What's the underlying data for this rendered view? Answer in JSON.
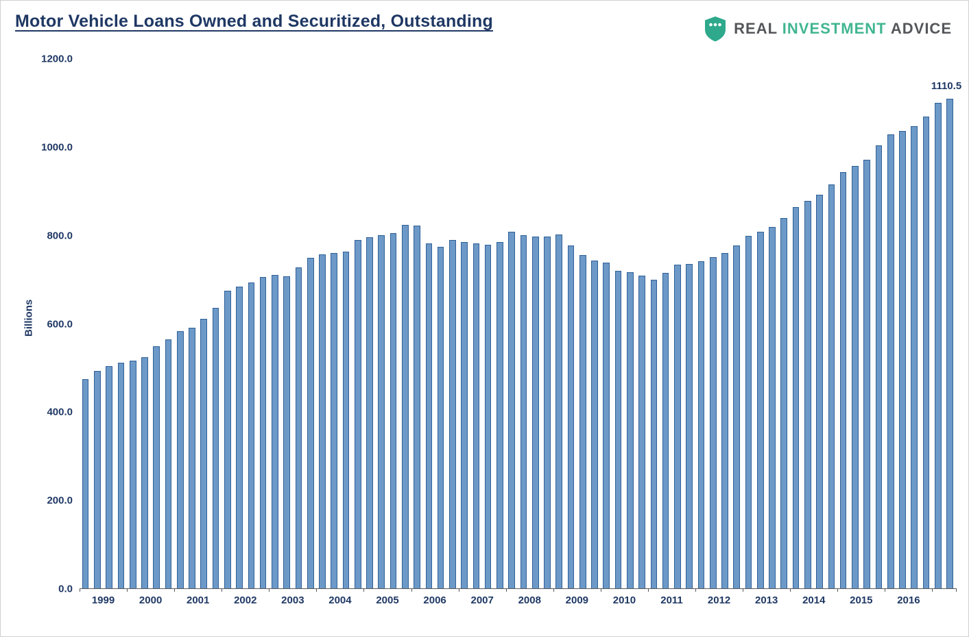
{
  "header": {
    "title": "Motor Vehicle Loans Owned and Securitized, Outstanding",
    "logo": {
      "real": "REAL",
      "investment": "INVESTMENT",
      "advice": "ADVICE",
      "shield_color": "#2EA98C"
    }
  },
  "chart_data": {
    "type": "bar",
    "title": "Motor Vehicle Loans Owned and Securitized, Outstanding",
    "ylabel": "Billions",
    "xlabel": "",
    "ylim": [
      0,
      1200
    ],
    "ytick_interval": 200,
    "ytick_labels": [
      "0.0",
      "200.0",
      "400.0",
      "600.0",
      "800.0",
      "1000.0",
      "1200.0"
    ],
    "grid": false,
    "legend_position": "none",
    "bar_fill": "#6C99C7",
    "bar_border": "#2F5F96",
    "year_labels": [
      "1999",
      "2000",
      "2001",
      "2002",
      "2003",
      "2004",
      "2005",
      "2006",
      "2007",
      "2008",
      "2009",
      "2010",
      "2011",
      "2012",
      "2013",
      "2014",
      "2015",
      "2016"
    ],
    "quarters_per_year": 4,
    "categories": [
      "1999 Q1",
      "1999 Q2",
      "1999 Q3",
      "1999 Q4",
      "2000 Q1",
      "2000 Q2",
      "2000 Q3",
      "2000 Q4",
      "2001 Q1",
      "2001 Q2",
      "2001 Q3",
      "2001 Q4",
      "2002 Q1",
      "2002 Q2",
      "2002 Q3",
      "2002 Q4",
      "2003 Q1",
      "2003 Q2",
      "2003 Q3",
      "2003 Q4",
      "2004 Q1",
      "2004 Q2",
      "2004 Q3",
      "2004 Q4",
      "2005 Q1",
      "2005 Q2",
      "2005 Q3",
      "2005 Q4",
      "2006 Q1",
      "2006 Q2",
      "2006 Q3",
      "2006 Q4",
      "2007 Q1",
      "2007 Q2",
      "2007 Q3",
      "2007 Q4",
      "2008 Q1",
      "2008 Q2",
      "2008 Q3",
      "2008 Q4",
      "2009 Q1",
      "2009 Q2",
      "2009 Q3",
      "2009 Q4",
      "2010 Q1",
      "2010 Q2",
      "2010 Q3",
      "2010 Q4",
      "2011 Q1",
      "2011 Q2",
      "2011 Q3",
      "2011 Q4",
      "2012 Q1",
      "2012 Q2",
      "2012 Q3",
      "2012 Q4",
      "2013 Q1",
      "2013 Q2",
      "2013 Q3",
      "2013 Q4",
      "2014 Q1",
      "2014 Q2",
      "2014 Q3",
      "2014 Q4",
      "2015 Q1",
      "2015 Q2",
      "2015 Q3",
      "2015 Q4",
      "2016 Q1",
      "2016 Q2",
      "2016 Q3",
      "2016 Q4",
      "2017 Q1",
      "2017 Q2"
    ],
    "values": [
      474,
      492,
      504,
      512,
      516,
      524,
      549,
      565,
      583,
      590,
      611,
      636,
      674,
      684,
      694,
      705,
      710,
      708,
      727,
      749,
      757,
      760,
      764,
      789,
      796,
      801,
      805,
      824,
      823,
      782,
      774,
      790,
      785,
      782,
      779,
      785,
      808,
      801,
      798,
      797,
      802,
      777,
      756,
      743,
      739,
      719,
      716,
      709,
      699,
      715,
      733,
      735,
      742,
      751,
      760,
      778,
      799,
      809,
      819,
      839,
      865,
      879,
      892,
      916,
      944,
      957,
      972,
      1004,
      1029,
      1037,
      1047,
      1070,
      1100,
      1110.5
    ],
    "last_value_label": "1110.5"
  }
}
